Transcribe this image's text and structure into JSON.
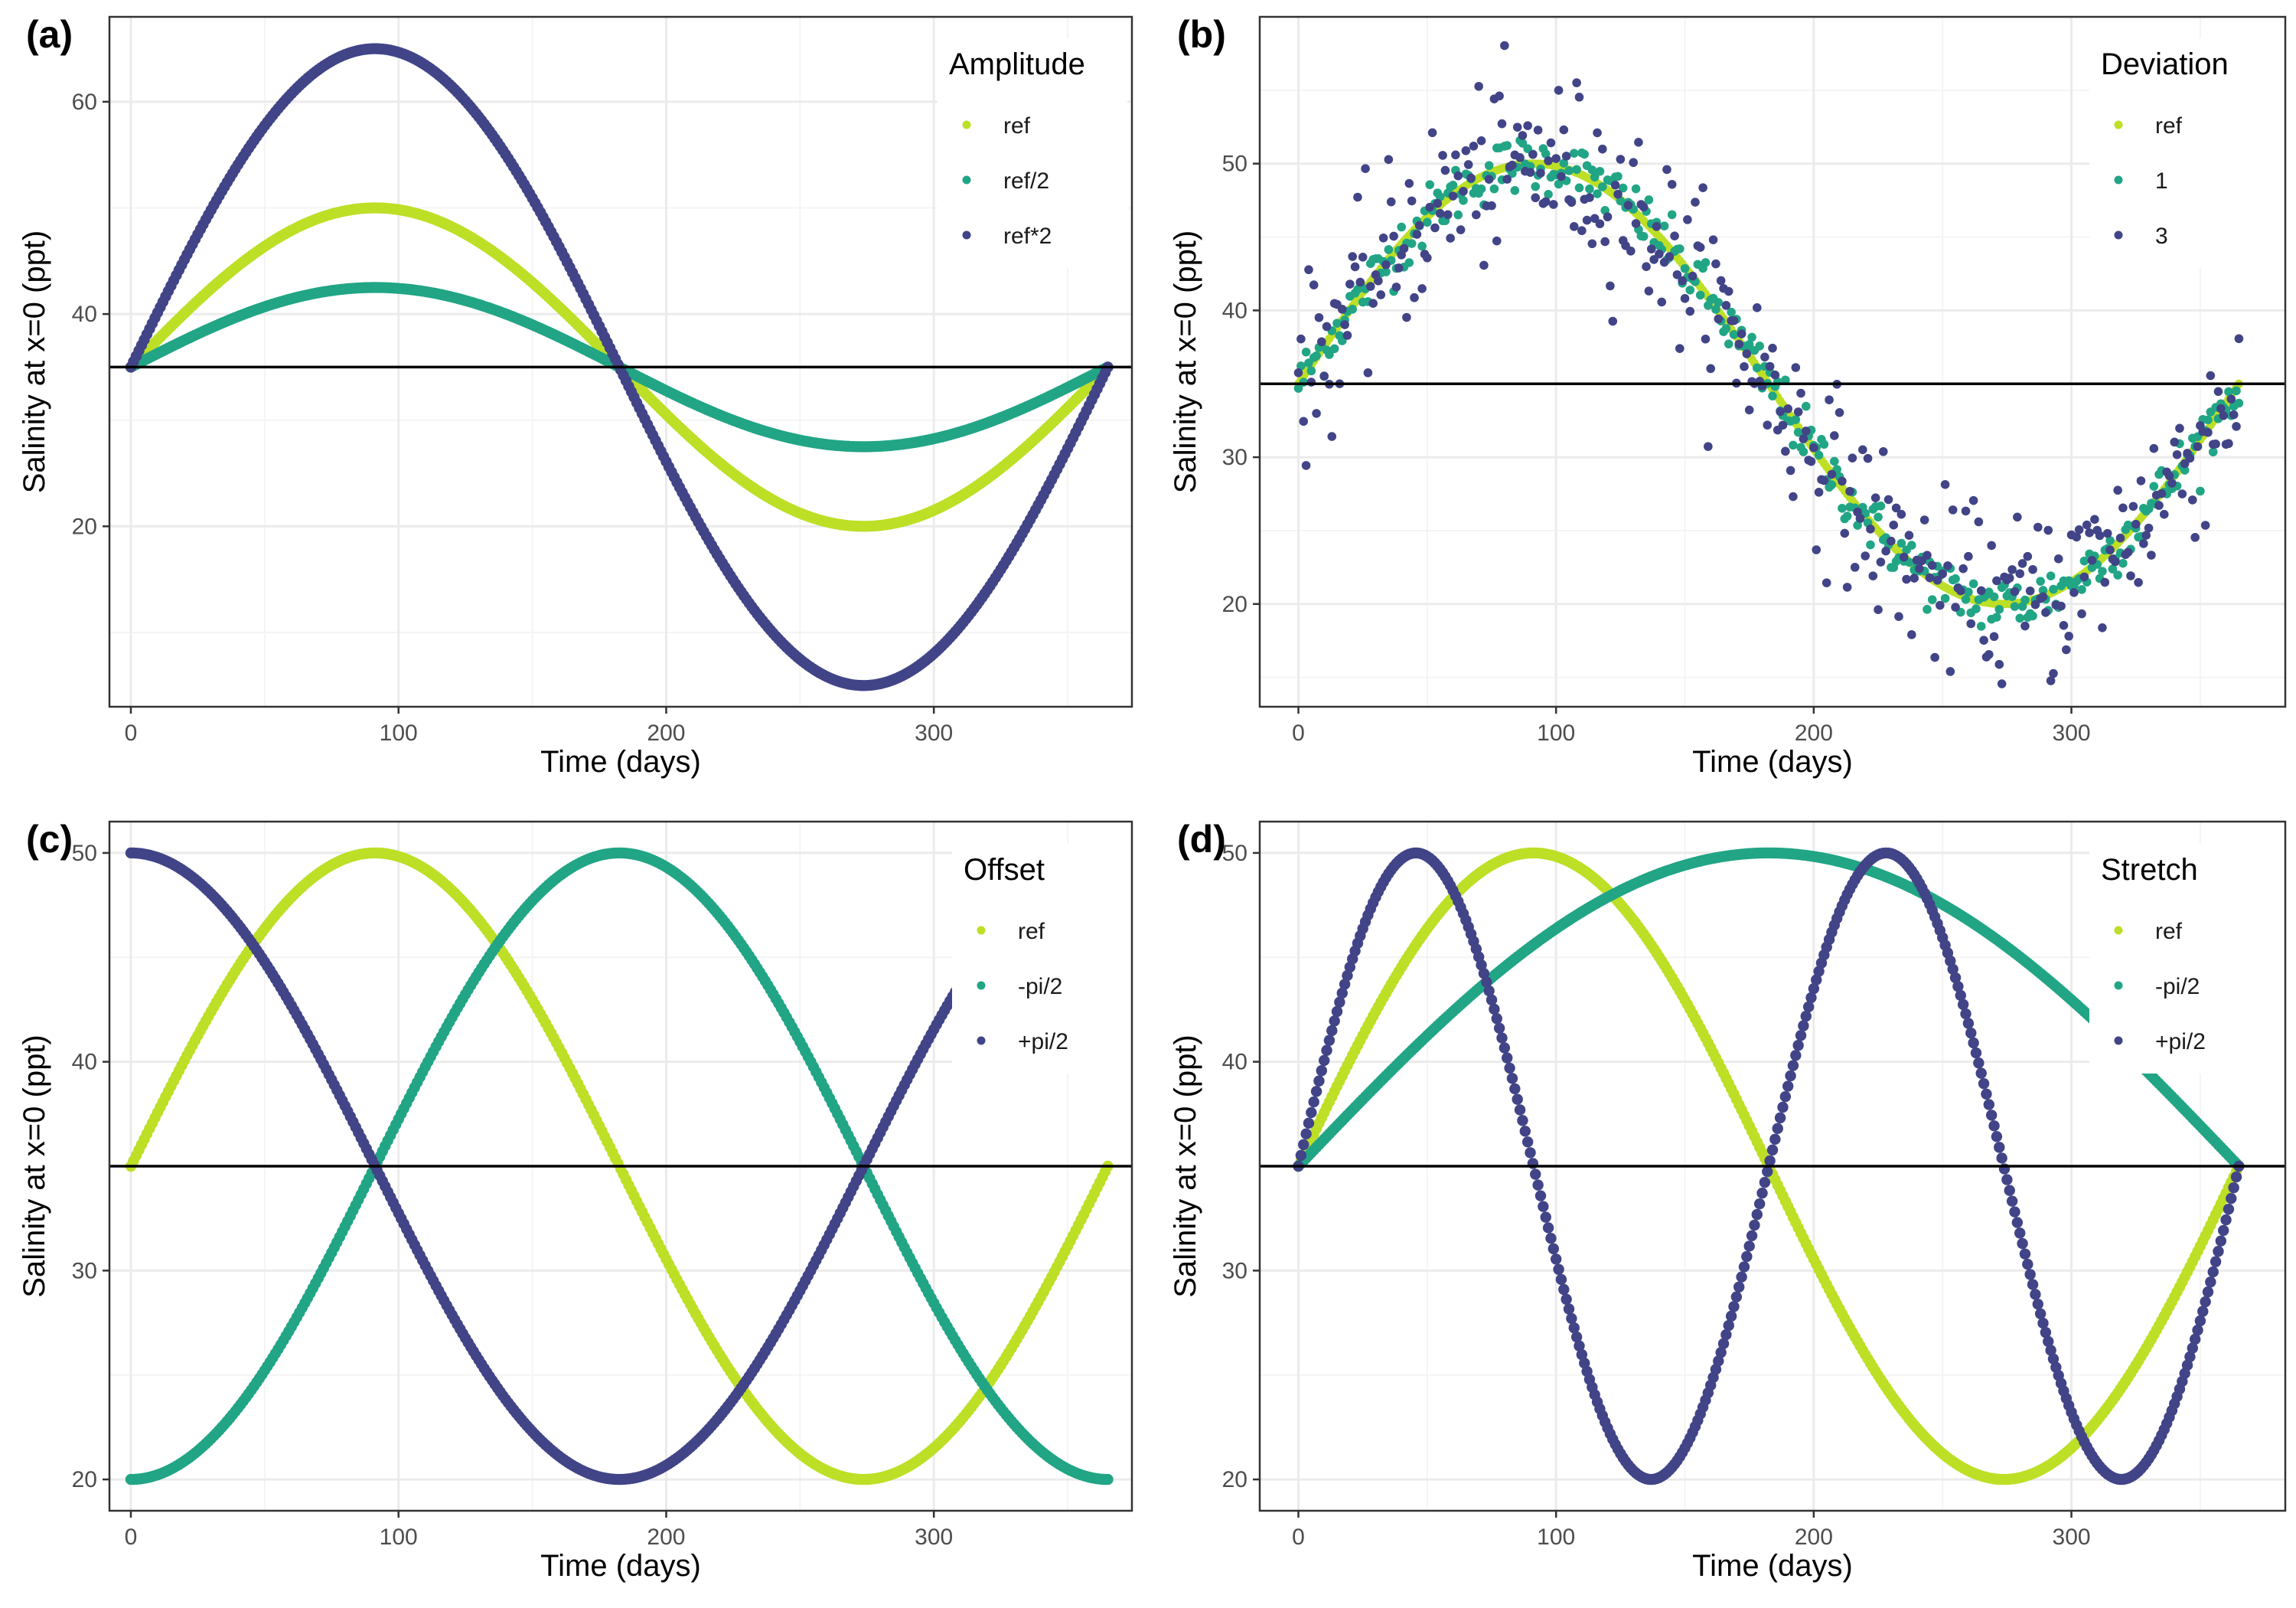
{
  "figure": {
    "colors": {
      "ref": "#bddf26",
      "mid": "#21a585",
      "dark": "#414487",
      "refline": "#000000",
      "grid_major": "#ebebeb",
      "grid_minor": "#f4f4f4",
      "frame": "#333333"
    }
  },
  "chart_data": [
    {
      "tag": "(a)",
      "type": "scatter",
      "xlabel": "Time (days)",
      "ylabel": "Salinity at x=0 (ppt)",
      "xlim": [
        -8,
        374
      ],
      "ylim": [
        3,
        68
      ],
      "xticks": [
        0,
        100,
        200,
        300
      ],
      "yticks": [
        20,
        40,
        60
      ],
      "reference_line_y": 35,
      "grid": true,
      "legend": {
        "title": "Amplitude",
        "position": "top-right",
        "entries": [
          "ref",
          "ref/2",
          "ref*2"
        ]
      },
      "series": [
        {
          "name": "ref",
          "color": "#bddf26",
          "baseline": 35,
          "amplitude": 15,
          "period_days": 365,
          "phase": 0,
          "x_range": [
            0,
            365
          ]
        },
        {
          "name": "ref/2",
          "color": "#21a585",
          "baseline": 35,
          "amplitude": 7.5,
          "period_days": 365,
          "phase": 0,
          "x_range": [
            0,
            365
          ]
        },
        {
          "name": "ref*2",
          "color": "#414487",
          "baseline": 35,
          "amplitude": 30,
          "period_days": 365,
          "phase": 0,
          "x_range": [
            0,
            365
          ]
        }
      ]
    },
    {
      "tag": "(b)",
      "type": "scatter",
      "xlabel": "Time (days)",
      "ylabel": "Salinity at x=0 (ppt)",
      "xlim": [
        -15,
        383
      ],
      "ylim": [
        13,
        60
      ],
      "xticks": [
        0,
        100,
        200,
        300
      ],
      "yticks": [
        20,
        30,
        40,
        50
      ],
      "reference_line_y": 35,
      "grid": true,
      "legend": {
        "title": "Deviation",
        "position": "top-right",
        "entries": [
          "ref",
          "1",
          "3"
        ]
      },
      "series": [
        {
          "name": "ref",
          "color": "#bddf26",
          "baseline": 35,
          "amplitude": 15,
          "period_days": 365,
          "phase": 0,
          "x_range": [
            0,
            365
          ],
          "noise_sd": 0
        },
        {
          "name": "1",
          "color": "#21a585",
          "baseline": 35,
          "amplitude": 15,
          "period_days": 365,
          "phase": 0,
          "x_range": [
            0,
            365
          ],
          "noise_sd": 1
        },
        {
          "name": "3",
          "color": "#414487",
          "baseline": 35,
          "amplitude": 15,
          "period_days": 365,
          "phase": 0,
          "x_range": [
            0,
            365
          ],
          "noise_sd": 3
        }
      ]
    },
    {
      "tag": "(c)",
      "type": "scatter",
      "xlabel": "Time (days)",
      "ylabel": "Salinity at x=0 (ppt)",
      "xlim": [
        -8,
        374
      ],
      "ylim": [
        18.5,
        51.5
      ],
      "xticks": [
        0,
        100,
        200,
        300
      ],
      "yticks": [
        20,
        30,
        40,
        50
      ],
      "reference_line_y": 35,
      "grid": true,
      "legend": {
        "title": "Offset",
        "position": "top-right",
        "entries": [
          "ref",
          "-pi/2",
          "+pi/2"
        ]
      },
      "series": [
        {
          "name": "ref",
          "color": "#bddf26",
          "baseline": 35,
          "amplitude": 15,
          "period_days": 365,
          "phase": 0,
          "x_range": [
            0,
            365
          ]
        },
        {
          "name": "-pi/2",
          "color": "#21a585",
          "baseline": 35,
          "amplitude": 15,
          "period_days": 365,
          "phase": -1.5708,
          "x_range": [
            0,
            365
          ]
        },
        {
          "name": "+pi/2",
          "color": "#414487",
          "baseline": 35,
          "amplitude": 15,
          "period_days": 365,
          "phase": 1.5708,
          "x_range": [
            0,
            365
          ]
        }
      ]
    },
    {
      "tag": "(d)",
      "type": "scatter",
      "xlabel": "Time (days)",
      "ylabel": "Salinity at x=0 (ppt)",
      "xlim": [
        -15,
        383
      ],
      "ylim": [
        18.5,
        51.5
      ],
      "xticks": [
        0,
        100,
        200,
        300
      ],
      "yticks": [
        20,
        30,
        40,
        50
      ],
      "reference_line_y": 35,
      "grid": true,
      "legend": {
        "title": "Stretch",
        "position": "top-right",
        "entries": [
          "ref",
          "-pi/2",
          "+pi/2"
        ]
      },
      "series": [
        {
          "name": "ref",
          "color": "#bddf26",
          "baseline": 35,
          "amplitude": 15,
          "period_days": 365,
          "phase": 0,
          "x_range": [
            0,
            365
          ]
        },
        {
          "name": "-pi/2",
          "color": "#21a585",
          "baseline": 35,
          "amplitude": 15,
          "period_days": 730,
          "phase": 0,
          "x_range": [
            0,
            365
          ]
        },
        {
          "name": "+pi/2",
          "color": "#414487",
          "baseline": 35,
          "amplitude": 15,
          "period_days": 182.5,
          "phase": 0,
          "x_range": [
            0,
            365
          ]
        }
      ]
    }
  ]
}
